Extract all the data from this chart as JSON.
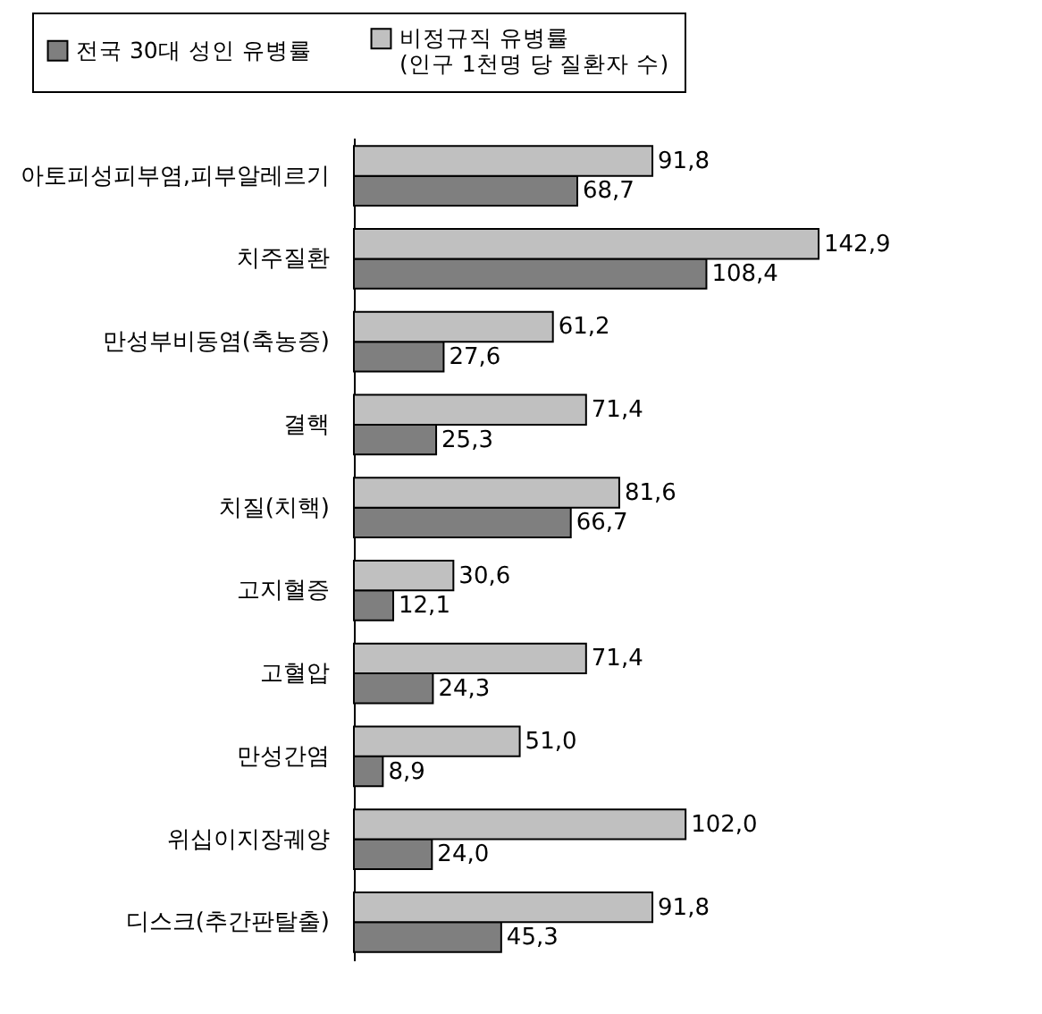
{
  "chart_data": {
    "type": "bar",
    "orientation": "horizontal",
    "legend": "top",
    "data_labels": true,
    "categories": [
      "아토피성피부염,피부알레르기",
      "치주질환",
      "만성부비동염(축농증)",
      "결핵",
      "치질(치핵)",
      "고지혈증",
      "고혈압",
      "만성간염",
      "위십이지장궤양",
      "디스크(추간판탈출)"
    ],
    "series": [
      {
        "name": "전국 30대 성인 유병률",
        "color": "#7f7f7f",
        "values": [
          68.7,
          108.4,
          27.6,
          25.3,
          66.7,
          12.1,
          24.3,
          8.9,
          24.0,
          45.3
        ],
        "value_labels": [
          "68,7",
          "108,4",
          "27,6",
          "25,3",
          "66,7",
          "12,1",
          "24,3",
          "8,9",
          "24,0",
          "45,3"
        ]
      },
      {
        "name": "비정규직 유병률\n(인구 1천명 당 질환자 수)",
        "color": "#c0c0c0",
        "values": [
          91.8,
          142.9,
          61.2,
          71.4,
          81.6,
          30.6,
          71.4,
          51.0,
          102.0,
          91.8
        ],
        "value_labels": [
          "91,8",
          "142,9",
          "61,2",
          "71,4",
          "81,6",
          "30,6",
          "71,4",
          "51,0",
          "102,0",
          "91,8"
        ]
      }
    ]
  }
}
